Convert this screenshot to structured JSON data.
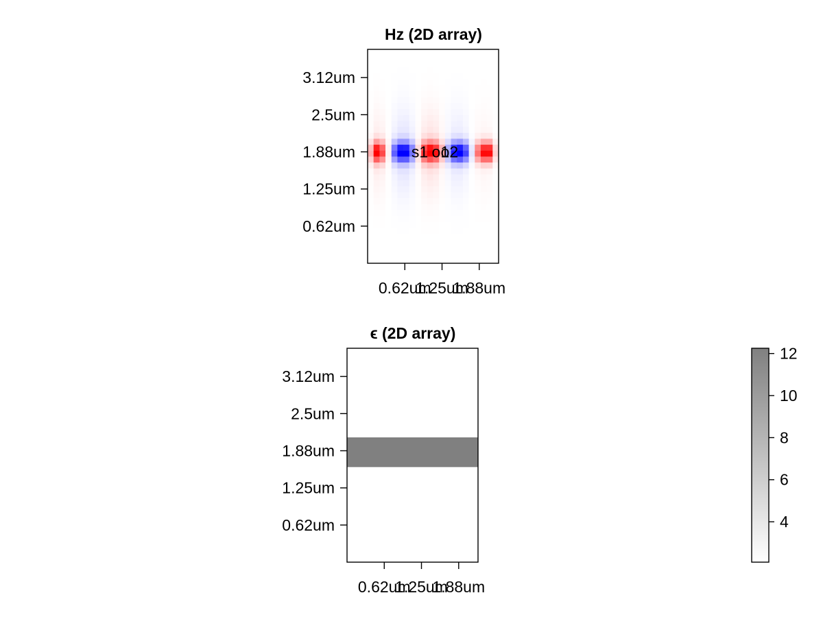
{
  "chart_data": [
    {
      "type": "heatmap",
      "title": "Hz (2D array)",
      "xlabel": "",
      "ylabel": "",
      "xlim": [
        0,
        1.76
      ],
      "ylim": [
        0,
        2.88
      ],
      "x_ticks": [
        {
          "value": 0.5,
          "label": "0.62um"
        },
        {
          "value": 1.0,
          "label": "1.25um"
        },
        {
          "value": 1.5,
          "label": "1.88um"
        }
      ],
      "y_ticks": [
        {
          "value": 0.5,
          "label": "0.62um"
        },
        {
          "value": 1.0,
          "label": "1.25um"
        },
        {
          "value": 1.5,
          "label": "1.88um"
        },
        {
          "value": 2.0,
          "label": "2.5um"
        },
        {
          "value": 2.5,
          "label": "3.12um"
        }
      ],
      "colormap": {
        "negative": "#0000ff",
        "zero": "#ffffff",
        "positive": "#ff0000"
      },
      "grid": {
        "nx": 22,
        "ny": 36
      },
      "mode": {
        "y_center": 1.5,
        "y_width": 0.13,
        "wavelength": 0.75,
        "phase": 0.1
      },
      "annotations": [
        {
          "text": "s1",
          "x": 0.7,
          "y": 1.5
        },
        {
          "text": "o1",
          "x": 0.98,
          "y": 1.5
        },
        {
          "text": "o2",
          "x": 1.1,
          "y": 1.5
        }
      ]
    },
    {
      "type": "heatmap",
      "title": "ϵ (2D array)",
      "xlabel": "",
      "ylabel": "",
      "xlim": [
        0,
        1.76
      ],
      "ylim": [
        0,
        2.88
      ],
      "x_ticks": [
        {
          "value": 0.5,
          "label": "0.62um"
        },
        {
          "value": 1.0,
          "label": "1.25um"
        },
        {
          "value": 1.5,
          "label": "1.88um"
        }
      ],
      "y_ticks": [
        {
          "value": 0.5,
          "label": "0.62um"
        },
        {
          "value": 1.0,
          "label": "1.25um"
        },
        {
          "value": 1.5,
          "label": "1.88um"
        },
        {
          "value": 2.0,
          "label": "2.5um"
        },
        {
          "value": 2.5,
          "label": "3.12um"
        }
      ],
      "regions": [
        {
          "y_range": [
            1.28,
            1.68
          ],
          "value": 12.25
        }
      ],
      "background_value": 2.08,
      "colorbar": {
        "range": [
          2.08,
          12.25
        ],
        "ticks": [
          4,
          6,
          8,
          10,
          12
        ],
        "color_low": "#ffffff",
        "color_high": "#808080"
      }
    }
  ]
}
